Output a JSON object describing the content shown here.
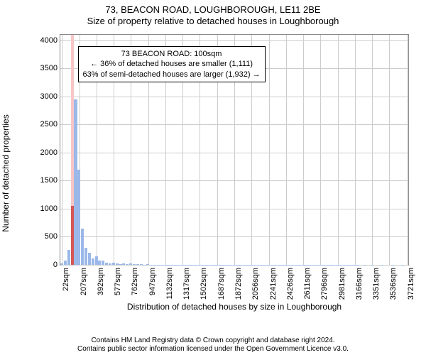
{
  "title": "73, BEACON ROAD, LOUGHBOROUGH, LE11 2BE",
  "subtitle": "Size of property relative to detached houses in Loughborough",
  "y_axis_label": "Number of detached properties",
  "x_axis_title": "Distribution of detached houses by size in Loughborough",
  "chart": {
    "type": "bar",
    "y_ticks": [
      0,
      500,
      1000,
      1500,
      2000,
      2500,
      3000,
      3500,
      4000
    ],
    "ylim": [
      0,
      4100
    ],
    "x_tick_labels": [
      "22sqm",
      "207sqm",
      "392sqm",
      "577sqm",
      "762sqm",
      "947sqm",
      "1132sqm",
      "1317sqm",
      "1502sqm",
      "1687sqm",
      "1872sqm",
      "2056sqm",
      "2241sqm",
      "2426sqm",
      "2611sqm",
      "2796sqm",
      "2981sqm",
      "3166sqm",
      "3351sqm",
      "3536sqm",
      "3721sqm"
    ],
    "x_tick_every_n_bars": 5,
    "bar_values": [
      20,
      80,
      260,
      1050,
      2950,
      1700,
      650,
      310,
      220,
      120,
      150,
      70,
      80,
      40,
      30,
      40,
      20,
      15,
      30,
      10,
      25,
      8,
      10,
      12,
      5,
      8,
      5,
      5,
      3,
      5,
      3,
      2,
      2,
      5,
      2,
      2,
      2,
      3,
      2,
      2,
      2,
      2,
      2,
      2,
      2,
      2,
      2,
      2,
      2,
      2,
      2,
      2,
      2,
      2,
      2,
      2,
      2,
      2,
      2,
      2,
      2,
      2,
      2,
      2,
      2,
      2,
      2,
      2,
      2,
      2,
      2,
      2,
      2,
      2,
      2,
      2,
      2,
      2,
      2,
      2,
      2,
      2,
      2,
      2,
      2,
      2,
      2,
      0,
      2,
      0,
      2,
      0,
      0,
      2,
      0,
      0,
      2,
      0,
      0,
      2,
      0
    ],
    "highlight_bar_index": 3,
    "bar_color": "#9bb8e8",
    "highlight_band_color": "#f7c6c6",
    "highlight_bar_color": "#d65555",
    "grid_color": "#cccccc",
    "border_color": "#888888",
    "background_color": "#ffffff"
  },
  "annotation": {
    "line1": "73 BEACON ROAD: 100sqm",
    "line2": "← 36% of detached houses are smaller (1,111)",
    "line3": "63% of semi-detached houses are larger (1,932) →"
  },
  "footer": {
    "line1": "Contains HM Land Registry data © Crown copyright and database right 2024.",
    "line2": "Contains public sector information licensed under the Open Government Licence v3.0."
  }
}
